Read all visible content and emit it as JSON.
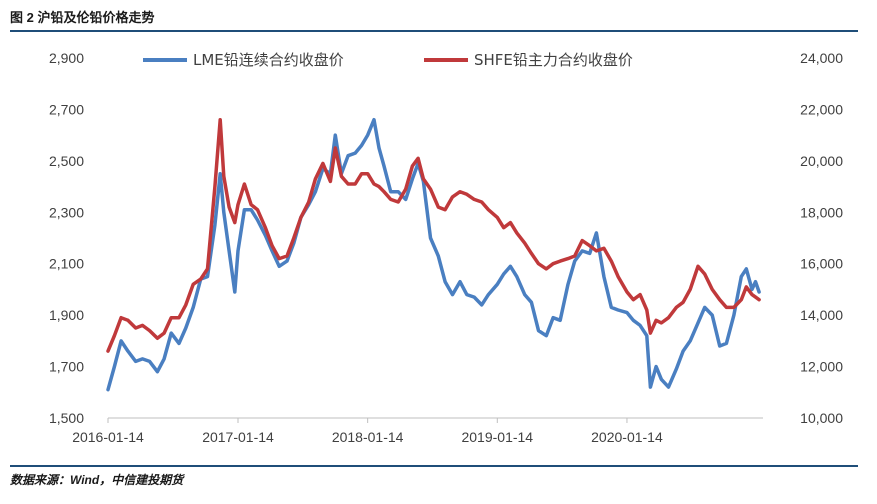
{
  "header": {
    "title": "图 2 沪铅及伦铅价格走势"
  },
  "footer": {
    "source": "数据来源：Wind，中信建投期货"
  },
  "colors": {
    "lme": "#4a7fc1",
    "shfe": "#c0393b",
    "rule": "#1f4e79",
    "axis": "#bfbfbf"
  },
  "chart_data": {
    "type": "line",
    "x_ticks": [
      "2016-01-14",
      "2017-01-14",
      "2018-01-14",
      "2019-01-14",
      "2020-01-14"
    ],
    "y_left_ticks": [
      "2,900",
      "2,700",
      "2,500",
      "2,300",
      "2,100",
      "1,900",
      "1,700",
      "1,500"
    ],
    "y_right_ticks": [
      "24,000",
      "22,000",
      "20,000",
      "18,000",
      "16,000",
      "14,000",
      "12,000",
      "10,000"
    ],
    "ylim_left": [
      1500,
      2900
    ],
    "ylim_right": [
      10000,
      24000
    ],
    "xlim": [
      "2016-01-14",
      "2021-01-31"
    ],
    "legend_position": "top",
    "series": [
      {
        "name": "LME铅连续合约收盘价",
        "axis": "left",
        "points": [
          [
            "2016-01-14",
            1610
          ],
          [
            "2016-02-01",
            1700
          ],
          [
            "2016-02-20",
            1800
          ],
          [
            "2016-03-10",
            1760
          ],
          [
            "2016-04-01",
            1720
          ],
          [
            "2016-04-20",
            1730
          ],
          [
            "2016-05-10",
            1720
          ],
          [
            "2016-06-01",
            1680
          ],
          [
            "2016-06-20",
            1730
          ],
          [
            "2016-07-10",
            1830
          ],
          [
            "2016-08-01",
            1790
          ],
          [
            "2016-08-20",
            1850
          ],
          [
            "2016-09-10",
            1930
          ],
          [
            "2016-10-01",
            2040
          ],
          [
            "2016-10-20",
            2050
          ],
          [
            "2016-11-10",
            2250
          ],
          [
            "2016-11-25",
            2450
          ],
          [
            "2016-12-05",
            2300
          ],
          [
            "2016-12-20",
            2150
          ],
          [
            "2017-01-05",
            1990
          ],
          [
            "2017-01-14",
            2150
          ],
          [
            "2017-02-01",
            2310
          ],
          [
            "2017-02-20",
            2310
          ],
          [
            "2017-03-10",
            2270
          ],
          [
            "2017-04-01",
            2210
          ],
          [
            "2017-04-20",
            2150
          ],
          [
            "2017-05-10",
            2090
          ],
          [
            "2017-06-01",
            2110
          ],
          [
            "2017-06-20",
            2180
          ],
          [
            "2017-07-10",
            2280
          ],
          [
            "2017-08-01",
            2330
          ],
          [
            "2017-08-20",
            2380
          ],
          [
            "2017-09-10",
            2470
          ],
          [
            "2017-10-01",
            2450
          ],
          [
            "2017-10-15",
            2600
          ],
          [
            "2017-11-01",
            2450
          ],
          [
            "2017-11-20",
            2520
          ],
          [
            "2017-12-10",
            2530
          ],
          [
            "2017-12-28",
            2560
          ],
          [
            "2018-01-14",
            2600
          ],
          [
            "2018-02-01",
            2660
          ],
          [
            "2018-02-15",
            2550
          ],
          [
            "2018-03-01",
            2480
          ],
          [
            "2018-03-20",
            2380
          ],
          [
            "2018-04-10",
            2380
          ],
          [
            "2018-05-01",
            2350
          ],
          [
            "2018-05-20",
            2430
          ],
          [
            "2018-06-05",
            2490
          ],
          [
            "2018-06-20",
            2420
          ],
          [
            "2018-07-10",
            2200
          ],
          [
            "2018-08-01",
            2130
          ],
          [
            "2018-08-20",
            2030
          ],
          [
            "2018-09-10",
            1980
          ],
          [
            "2018-10-01",
            2030
          ],
          [
            "2018-10-20",
            1980
          ],
          [
            "2018-11-10",
            1970
          ],
          [
            "2018-12-01",
            1940
          ],
          [
            "2018-12-20",
            1980
          ],
          [
            "2019-01-14",
            2020
          ],
          [
            "2019-02-01",
            2060
          ],
          [
            "2019-02-20",
            2090
          ],
          [
            "2019-03-10",
            2050
          ],
          [
            "2019-04-01",
            1980
          ],
          [
            "2019-04-20",
            1950
          ],
          [
            "2019-05-10",
            1840
          ],
          [
            "2019-06-01",
            1820
          ],
          [
            "2019-06-20",
            1890
          ],
          [
            "2019-07-10",
            1880
          ],
          [
            "2019-08-01",
            2020
          ],
          [
            "2019-08-20",
            2110
          ],
          [
            "2019-09-10",
            2150
          ],
          [
            "2019-10-01",
            2140
          ],
          [
            "2019-10-20",
            2220
          ],
          [
            "2019-11-10",
            2050
          ],
          [
            "2019-12-01",
            1930
          ],
          [
            "2019-12-20",
            1920
          ],
          [
            "2020-01-14",
            1910
          ],
          [
            "2020-02-01",
            1880
          ],
          [
            "2020-02-20",
            1860
          ],
          [
            "2020-03-10",
            1820
          ],
          [
            "2020-03-20",
            1620
          ],
          [
            "2020-04-05",
            1700
          ],
          [
            "2020-04-20",
            1650
          ],
          [
            "2020-05-10",
            1620
          ],
          [
            "2020-06-01",
            1690
          ],
          [
            "2020-06-20",
            1760
          ],
          [
            "2020-07-10",
            1800
          ],
          [
            "2020-08-01",
            1870
          ],
          [
            "2020-08-20",
            1930
          ],
          [
            "2020-09-10",
            1900
          ],
          [
            "2020-10-01",
            1780
          ],
          [
            "2020-10-20",
            1790
          ],
          [
            "2020-11-10",
            1900
          ],
          [
            "2020-12-01",
            2050
          ],
          [
            "2020-12-15",
            2080
          ],
          [
            "2020-12-31",
            2000
          ],
          [
            "2021-01-10",
            2030
          ],
          [
            "2021-01-20",
            1990
          ]
        ]
      },
      {
        "name": "SHFE铅主力合约收盘价",
        "axis": "right",
        "points": [
          [
            "2016-01-14",
            12600
          ],
          [
            "2016-02-01",
            13200
          ],
          [
            "2016-02-20",
            13900
          ],
          [
            "2016-03-10",
            13800
          ],
          [
            "2016-04-01",
            13500
          ],
          [
            "2016-04-20",
            13600
          ],
          [
            "2016-05-10",
            13400
          ],
          [
            "2016-06-01",
            13100
          ],
          [
            "2016-06-20",
            13300
          ],
          [
            "2016-07-10",
            13900
          ],
          [
            "2016-08-01",
            13900
          ],
          [
            "2016-08-20",
            14400
          ],
          [
            "2016-09-10",
            15200
          ],
          [
            "2016-10-01",
            15400
          ],
          [
            "2016-10-20",
            15800
          ],
          [
            "2016-11-10",
            19000
          ],
          [
            "2016-11-25",
            21600
          ],
          [
            "2016-12-05",
            19400
          ],
          [
            "2016-12-20",
            18200
          ],
          [
            "2017-01-05",
            17600
          ],
          [
            "2017-01-14",
            18300
          ],
          [
            "2017-02-01",
            19100
          ],
          [
            "2017-02-20",
            18300
          ],
          [
            "2017-03-10",
            18100
          ],
          [
            "2017-04-01",
            17400
          ],
          [
            "2017-04-20",
            16700
          ],
          [
            "2017-05-10",
            16200
          ],
          [
            "2017-06-01",
            16300
          ],
          [
            "2017-06-20",
            17000
          ],
          [
            "2017-07-10",
            17800
          ],
          [
            "2017-08-01",
            18400
          ],
          [
            "2017-08-20",
            19300
          ],
          [
            "2017-09-10",
            19900
          ],
          [
            "2017-10-01",
            19200
          ],
          [
            "2017-10-15",
            20500
          ],
          [
            "2017-11-01",
            19400
          ],
          [
            "2017-11-20",
            19100
          ],
          [
            "2017-12-10",
            19100
          ],
          [
            "2017-12-28",
            19500
          ],
          [
            "2018-01-14",
            19500
          ],
          [
            "2018-02-01",
            19100
          ],
          [
            "2018-02-15",
            19000
          ],
          [
            "2018-03-01",
            18800
          ],
          [
            "2018-03-20",
            18500
          ],
          [
            "2018-04-10",
            18400
          ],
          [
            "2018-05-01",
            18900
          ],
          [
            "2018-05-20",
            19800
          ],
          [
            "2018-06-05",
            20100
          ],
          [
            "2018-06-20",
            19300
          ],
          [
            "2018-07-10",
            18900
          ],
          [
            "2018-08-01",
            18200
          ],
          [
            "2018-08-20",
            18100
          ],
          [
            "2018-09-10",
            18600
          ],
          [
            "2018-10-01",
            18800
          ],
          [
            "2018-10-20",
            18700
          ],
          [
            "2018-11-10",
            18500
          ],
          [
            "2018-12-01",
            18400
          ],
          [
            "2018-12-20",
            18100
          ],
          [
            "2019-01-14",
            17800
          ],
          [
            "2019-02-01",
            17400
          ],
          [
            "2019-02-20",
            17600
          ],
          [
            "2019-03-10",
            17200
          ],
          [
            "2019-04-01",
            16800
          ],
          [
            "2019-04-20",
            16400
          ],
          [
            "2019-05-10",
            16000
          ],
          [
            "2019-06-01",
            15800
          ],
          [
            "2019-06-20",
            16000
          ],
          [
            "2019-07-10",
            16100
          ],
          [
            "2019-08-01",
            16200
          ],
          [
            "2019-08-20",
            16300
          ],
          [
            "2019-09-10",
            16900
          ],
          [
            "2019-10-01",
            16700
          ],
          [
            "2019-10-20",
            16500
          ],
          [
            "2019-11-10",
            16600
          ],
          [
            "2019-12-01",
            16100
          ],
          [
            "2019-12-20",
            15500
          ],
          [
            "2020-01-14",
            14900
          ],
          [
            "2020-02-01",
            14600
          ],
          [
            "2020-02-20",
            14800
          ],
          [
            "2020-03-10",
            14200
          ],
          [
            "2020-03-20",
            13300
          ],
          [
            "2020-04-05",
            13800
          ],
          [
            "2020-04-20",
            13700
          ],
          [
            "2020-05-10",
            13900
          ],
          [
            "2020-06-01",
            14300
          ],
          [
            "2020-06-20",
            14500
          ],
          [
            "2020-07-10",
            15000
          ],
          [
            "2020-08-01",
            15900
          ],
          [
            "2020-08-20",
            15600
          ],
          [
            "2020-09-10",
            15000
          ],
          [
            "2020-10-01",
            14600
          ],
          [
            "2020-10-20",
            14300
          ],
          [
            "2020-11-10",
            14300
          ],
          [
            "2020-12-01",
            14600
          ],
          [
            "2020-12-15",
            15100
          ],
          [
            "2020-12-31",
            14800
          ],
          [
            "2021-01-10",
            14700
          ],
          [
            "2021-01-20",
            14600
          ]
        ]
      }
    ]
  }
}
